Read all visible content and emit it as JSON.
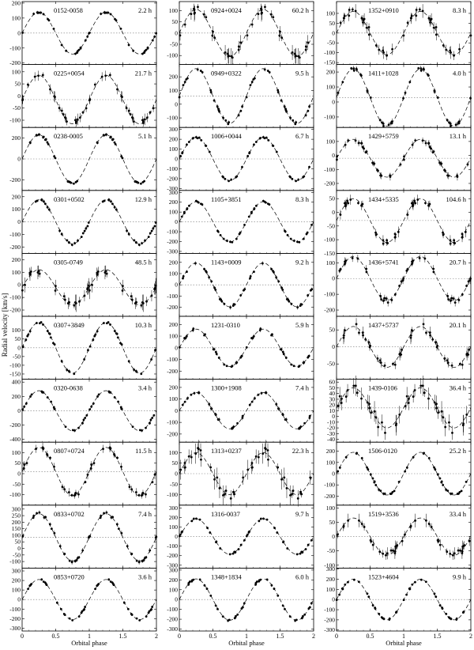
{
  "figure": {
    "ylabel": "Radial velocity [km/s]",
    "xlabel": "Orbital phase",
    "x_ticks": [
      "0",
      "0.5",
      "1",
      "1.5",
      "2"
    ]
  },
  "chart_data": [
    {
      "type": "scatter",
      "title": "0152-0058",
      "period": "2.2 h",
      "K": 140,
      "gamma": 0,
      "phase0": 0,
      "ylim": [
        -210,
        210
      ],
      "yticks": [
        "200",
        "100",
        "0",
        "-100",
        "-200"
      ],
      "yvals": [
        200,
        100,
        0,
        -100,
        -200
      ],
      "xlim": [
        0,
        2
      ],
      "scatter": 6
    },
    {
      "type": "scatter",
      "title": "0225+0054",
      "period": "21.7 h",
      "K": 100,
      "gamma": -15,
      "phase0": 0,
      "ylim": [
        -130,
        130
      ],
      "yticks": [
        "100",
        "50",
        "0",
        "-50",
        "-100"
      ],
      "yvals": [
        100,
        50,
        0,
        -50,
        -100
      ],
      "xlim": [
        0,
        2
      ],
      "scatter": 12
    },
    {
      "type": "scatter",
      "title": "0238-0005",
      "period": "5.1 h",
      "K": 230,
      "gamma": 0,
      "phase0": 0,
      "ylim": [
        -300,
        300
      ],
      "yticks": [
        "200",
        "0",
        "-200"
      ],
      "yvals": [
        200,
        0,
        -200
      ],
      "xlim": [
        0,
        2
      ],
      "scatter": 8
    },
    {
      "type": "scatter",
      "title": "0301+0502",
      "period": "12.9 h",
      "K": 175,
      "gamma": 0,
      "phase0": 0,
      "ylim": [
        -250,
        250
      ],
      "yticks": [
        "200",
        "100",
        "0",
        "-100",
        "-200"
      ],
      "yvals": [
        200,
        100,
        0,
        -100,
        -200
      ],
      "xlim": [
        0,
        2
      ],
      "scatter": 8
    },
    {
      "type": "scatter",
      "title": "0305-0749",
      "period": "48.5 h",
      "K": 140,
      "gamma": -20,
      "phase0": 0,
      "ylim": [
        -250,
        250
      ],
      "yticks": [
        "200",
        "100",
        "0",
        "-100",
        "-200"
      ],
      "yvals": [
        200,
        100,
        0,
        -100,
        -200
      ],
      "xlim": [
        0,
        2
      ],
      "scatter": 35
    },
    {
      "type": "scatter",
      "title": "0307+3849",
      "period": "10.3 h",
      "K": 145,
      "gamma": 0,
      "phase0": 0,
      "ylim": [
        -180,
        180
      ],
      "yticks": [
        "100",
        "50",
        "0",
        "-50",
        "-100",
        "-150"
      ],
      "yvals": [
        100,
        50,
        0,
        -50,
        -100,
        -150
      ],
      "xlim": [
        0,
        2
      ],
      "scatter": 6
    },
    {
      "type": "scatter",
      "title": "0320-0638",
      "period": "3.4 h",
      "K": 280,
      "gamma": 0,
      "phase0": 0,
      "ylim": [
        -440,
        440
      ],
      "yticks": [
        "400",
        "200",
        "0",
        "-200",
        "-400"
      ],
      "yvals": [
        400,
        200,
        0,
        -200,
        -400
      ],
      "xlim": [
        0,
        2
      ],
      "scatter": 12
    },
    {
      "type": "scatter",
      "title": "0807+0724",
      "period": "11.5 h",
      "K": 115,
      "gamma": 10,
      "phase0": 0,
      "ylim": [
        -150,
        150
      ],
      "yticks": [
        "100",
        "50",
        "0",
        "-50",
        "-100"
      ],
      "yvals": [
        100,
        50,
        0,
        -50,
        -100
      ],
      "xlim": [
        0,
        2
      ],
      "scatter": 12
    },
    {
      "type": "scatter",
      "title": "0833+0702",
      "period": "7.4 h",
      "K": 180,
      "gamma": 85,
      "phase0": 0,
      "ylim": [
        -150,
        330
      ],
      "yticks": [
        "300",
        "250",
        "200",
        "150",
        "100",
        "50",
        "0",
        "-50",
        "-100"
      ],
      "yvals": [
        300,
        250,
        200,
        150,
        100,
        50,
        0,
        -50,
        -100
      ],
      "xlim": [
        0,
        2
      ],
      "scatter": 10
    },
    {
      "type": "scatter",
      "title": "0853+0720",
      "period": "3.6 h",
      "K": 210,
      "gamma": 0,
      "phase0": 0,
      "ylim": [
        -330,
        330
      ],
      "yticks": [
        "300",
        "200",
        "100",
        "0",
        "-100",
        "-200",
        "-300"
      ],
      "yvals": [
        300,
        200,
        100,
        0,
        -100,
        -200,
        -300
      ],
      "xlim": [
        0,
        2
      ],
      "scatter": 8
    },
    {
      "type": "scatter",
      "title": "0924+0024",
      "period": "60.2 h",
      "K": 105,
      "gamma": 0,
      "phase0": 0,
      "ylim": [
        -140,
        140
      ],
      "yticks": [
        "100",
        "50",
        "0",
        "-50",
        "-100"
      ],
      "yvals": [
        100,
        50,
        0,
        -50,
        -100
      ],
      "xlim": [
        0,
        2
      ],
      "scatter": 18
    },
    {
      "type": "scatter",
      "title": "0949+0322",
      "period": "9.5 h",
      "K": 200,
      "gamma": 60,
      "phase0": 0,
      "ylim": [
        -170,
        290
      ],
      "yticks": [
        "200",
        "100",
        "0",
        "-100"
      ],
      "yvals": [
        200,
        100,
        0,
        -100
      ],
      "xlim": [
        0,
        2
      ],
      "scatter": 10
    },
    {
      "type": "scatter",
      "title": "1006+0044",
      "period": "6.7 h",
      "K": 220,
      "gamma": 0,
      "phase0": 0,
      "ylim": [
        -320,
        320
      ],
      "yticks": [
        "300",
        "200",
        "100",
        "0",
        "-100",
        "-200",
        "-300"
      ],
      "yvals": [
        300,
        200,
        100,
        0,
        -100,
        -200,
        -300
      ],
      "xlim": [
        0,
        2
      ],
      "scatter": 8
    },
    {
      "type": "scatter",
      "title": "1105+3851",
      "period": "8.3 h",
      "K": 205,
      "gamma": 0,
      "phase0": 0,
      "ylim": [
        -320,
        320
      ],
      "yticks": [
        "300",
        "200",
        "100",
        "0",
        "-100",
        "-200",
        "-300"
      ],
      "yvals": [
        300,
        200,
        100,
        0,
        -100,
        -200,
        -300
      ],
      "xlim": [
        0,
        2
      ],
      "scatter": 8
    },
    {
      "type": "scatter",
      "title": "1143+0009",
      "period": "9.2 h",
      "K": 195,
      "gamma": 0,
      "phase0": 0,
      "ylim": [
        -280,
        280
      ],
      "yticks": [
        "200",
        "100",
        "0",
        "-100",
        "-200"
      ],
      "yvals": [
        200,
        100,
        0,
        -100,
        -200
      ],
      "xlim": [
        0,
        2
      ],
      "scatter": 10
    },
    {
      "type": "scatter",
      "title": "1231-0310",
      "period": "5.9 h",
      "K": 160,
      "gamma": 0,
      "phase0": 0,
      "ylim": [
        -270,
        270
      ],
      "yticks": [
        "200",
        "100",
        "0",
        "-100",
        "-200"
      ],
      "yvals": [
        200,
        100,
        0,
        -100,
        -200
      ],
      "xlim": [
        0,
        2
      ],
      "scatter": 10
    },
    {
      "type": "scatter",
      "title": "1300+1908",
      "period": "7.4 h",
      "K": 155,
      "gamma": 0,
      "phase0": 0,
      "ylim": [
        -270,
        270
      ],
      "yticks": [
        "200",
        "100",
        "0",
        "-100",
        "-200"
      ],
      "yvals": [
        200,
        100,
        0,
        -100,
        -200
      ],
      "xlim": [
        0,
        2
      ],
      "scatter": 10
    },
    {
      "type": "scatter",
      "title": "1313+0237",
      "period": "22.3 h",
      "K": 100,
      "gamma": 0,
      "phase0": 0,
      "ylim": [
        -150,
        150
      ],
      "yticks": [
        "100",
        "50",
        "0",
        "-50",
        "-100"
      ],
      "yvals": [
        100,
        50,
        0,
        -50,
        -100
      ],
      "xlim": [
        0,
        2
      ],
      "scatter": 25
    },
    {
      "type": "scatter",
      "title": "1316-0037",
      "period": "9.7 h",
      "K": 185,
      "gamma": 0,
      "phase0": 0,
      "ylim": [
        -330,
        330
      ],
      "yticks": [
        "300",
        "200",
        "100",
        "0",
        "-100",
        "-200",
        "-300"
      ],
      "yvals": [
        300,
        200,
        100,
        0,
        -100,
        -200,
        -300
      ],
      "xlim": [
        0,
        2
      ],
      "scatter": 8
    },
    {
      "type": "scatter",
      "title": "1348+1834",
      "period": "6.0 h",
      "K": 210,
      "gamma": 0,
      "phase0": 0,
      "ylim": [
        -320,
        320
      ],
      "yticks": [
        "300",
        "200",
        "100",
        "0",
        "-100",
        "-200",
        "-300"
      ],
      "yvals": [
        300,
        200,
        100,
        0,
        -100,
        -200,
        -300
      ],
      "xlim": [
        0,
        2
      ],
      "scatter": 8
    },
    {
      "type": "scatter",
      "title": "1352+0910",
      "period": "8.3 h",
      "K": 110,
      "gamma": 0,
      "phase0": 0,
      "ylim": [
        -160,
        160
      ],
      "yticks": [
        "100",
        "50",
        "0",
        "-50",
        "-100",
        "-150"
      ],
      "yvals": [
        100,
        50,
        0,
        -50,
        -100,
        -150
      ],
      "xlim": [
        0,
        2
      ],
      "scatter": 18
    },
    {
      "type": "scatter",
      "title": "1411+1028",
      "period": "4.0 h",
      "K": 190,
      "gamma": 30,
      "phase0": 0,
      "ylim": [
        -170,
        250
      ],
      "yticks": [
        "200",
        "100",
        "0",
        "-100"
      ],
      "yvals": [
        200,
        100,
        0,
        -100
      ],
      "xlim": [
        0,
        2
      ],
      "scatter": 10
    },
    {
      "type": "scatter",
      "title": "1429+5759",
      "period": "13.1 h",
      "K": 135,
      "gamma": -20,
      "phase0": 0,
      "ylim": [
        -250,
        200
      ],
      "yticks": [
        "100",
        "0",
        "-100",
        "-200"
      ],
      "yvals": [
        100,
        0,
        -100,
        -200
      ],
      "xlim": [
        0,
        2
      ],
      "scatter": 14
    },
    {
      "type": "scatter",
      "title": "1434+5335",
      "period": "104.6 h",
      "K": 80,
      "gamma": -30,
      "phase0": 0,
      "ylim": [
        -150,
        80
      ],
      "yticks": [
        "50",
        "0",
        "-50",
        "-100",
        "-150"
      ],
      "yvals": [
        50,
        0,
        -50,
        -100,
        -150
      ],
      "xlim": [
        0,
        2
      ],
      "scatter": 10
    },
    {
      "type": "scatter",
      "title": "1436+5741",
      "period": "20.7 h",
      "K": 140,
      "gamma": 0,
      "phase0": 0,
      "ylim": [
        -240,
        160
      ],
      "yticks": [
        "100",
        "0",
        "-100",
        "-200"
      ],
      "yvals": [
        100,
        0,
        -100,
        -200
      ],
      "xlim": [
        0,
        2
      ],
      "scatter": 14
    },
    {
      "type": "scatter",
      "title": "1437+5737",
      "period": "20.1 h",
      "K": 60,
      "gamma": 0,
      "phase0": 0,
      "ylim": [
        -95,
        90
      ],
      "yticks": [
        "50",
        "0",
        "-50"
      ],
      "yvals": [
        50,
        0,
        -50
      ],
      "xlim": [
        0,
        2
      ],
      "scatter": 10
    },
    {
      "type": "scatter",
      "title": "1439-0106",
      "period": "36.4 h",
      "K": 35,
      "gamma": 15,
      "phase0": 0,
      "ylim": [
        -45,
        65
      ],
      "yticks": [
        "60",
        "50",
        "40",
        "30",
        "20",
        "10",
        "0",
        "-10",
        "-20",
        "-30",
        "-40"
      ],
      "yvals": [
        60,
        50,
        40,
        30,
        20,
        10,
        0,
        -10,
        -20,
        -30,
        -40
      ],
      "xlim": [
        0,
        2
      ],
      "scatter": 10
    },
    {
      "type": "scatter",
      "title": "1506-0120",
      "period": "25.2 h",
      "K": 190,
      "gamma": 0,
      "phase0": 0,
      "ylim": [
        -280,
        280
      ],
      "yticks": [
        "200",
        "100",
        "0",
        "-100",
        "-200"
      ],
      "yvals": [
        200,
        100,
        0,
        -100,
        -200
      ],
      "xlim": [
        0,
        2
      ],
      "scatter": 8
    },
    {
      "type": "scatter",
      "title": "1519+3536",
      "period": "33.4 h",
      "K": 65,
      "gamma": 0,
      "phase0": 0,
      "ylim": [
        -110,
        110
      ],
      "yticks": [
        "100",
        "50",
        "0",
        "-50",
        "-100"
      ],
      "yvals": [
        100,
        50,
        0,
        -50,
        -100
      ],
      "xlim": [
        0,
        2
      ],
      "scatter": 12
    },
    {
      "type": "scatter",
      "title": "1523+4604",
      "period": "9.9 h",
      "K": 200,
      "gamma": 0,
      "phase0": 0,
      "ylim": [
        -310,
        310
      ],
      "yticks": [
        "300",
        "200",
        "100",
        "0",
        "-100",
        "-200",
        "-300"
      ],
      "yvals": [
        300,
        200,
        100,
        0,
        -100,
        -200,
        -300
      ],
      "xlim": [
        0,
        2
      ],
      "scatter": 8
    }
  ]
}
